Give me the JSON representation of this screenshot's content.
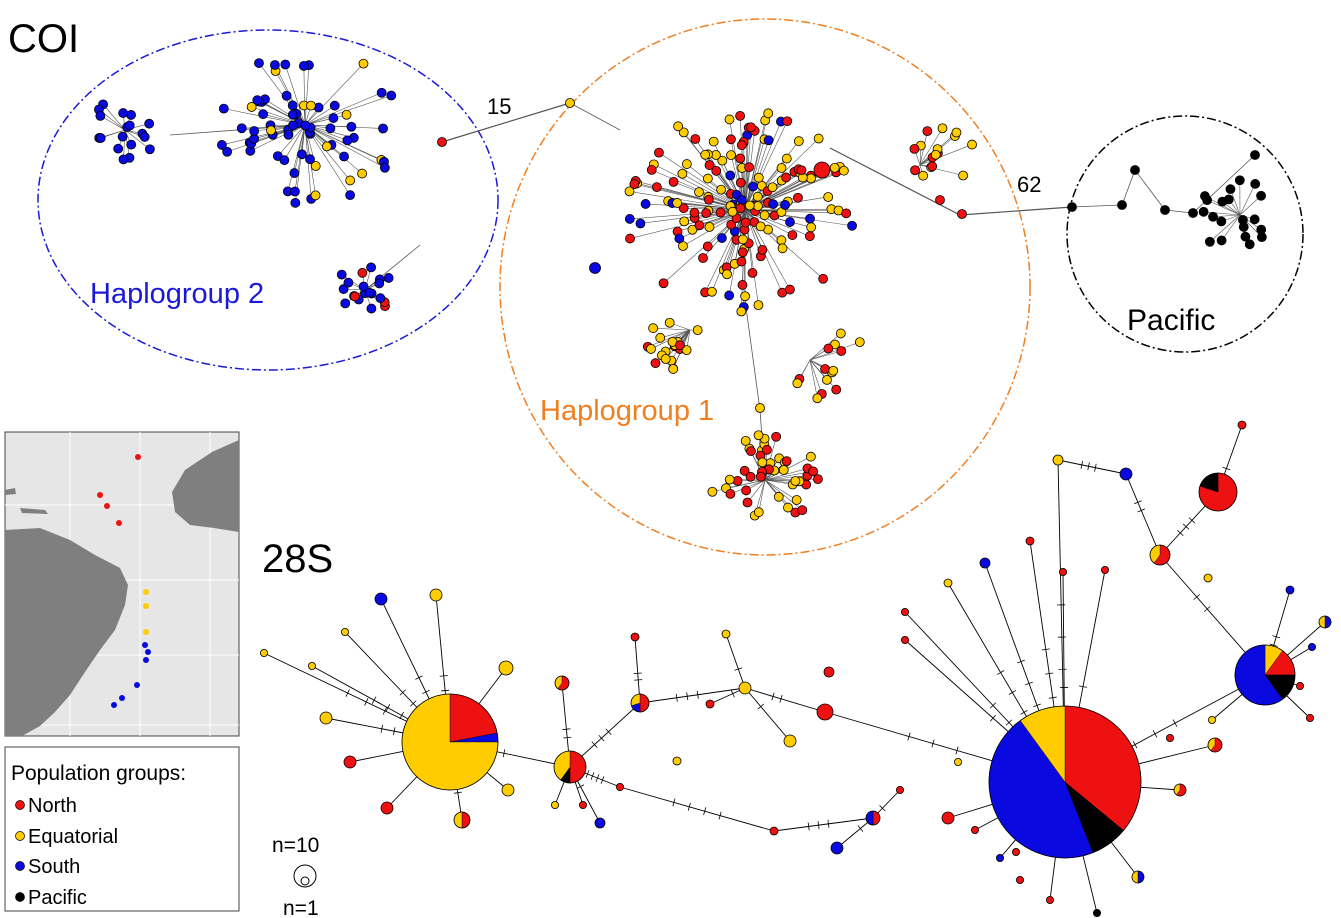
{
  "title_coi": "COI",
  "title_28s": "28S",
  "groups": {
    "haplogroup2": "Haplogroup 2",
    "haplogroup1": "Haplogroup 1",
    "pacific": "Pacific"
  },
  "mutation_counts": {
    "coi_hg2_hg1": "15",
    "coi_hg1_pacific": "62"
  },
  "legend": {
    "title": "Population groups:",
    "items": [
      {
        "label": "North",
        "color": "#ee1111"
      },
      {
        "label": "Equatorial",
        "color": "#ffcc00"
      },
      {
        "label": "South",
        "color": "#0a0ae0"
      },
      {
        "label": "Pacific",
        "color": "#000000"
      }
    ]
  },
  "size_scale": {
    "large": "n=10",
    "small": "n=1"
  },
  "colors": {
    "north": "#ee1111",
    "equatorial": "#ffcc00",
    "south": "#0a0ae0",
    "pacific": "#000000",
    "haplogroup2_ring": "#1a1ad6",
    "haplogroup1_ring": "#f07f22",
    "pacific_ring": "#000000",
    "map_ocean": "#e6e6e6",
    "map_land": "#7f7f7f"
  }
}
